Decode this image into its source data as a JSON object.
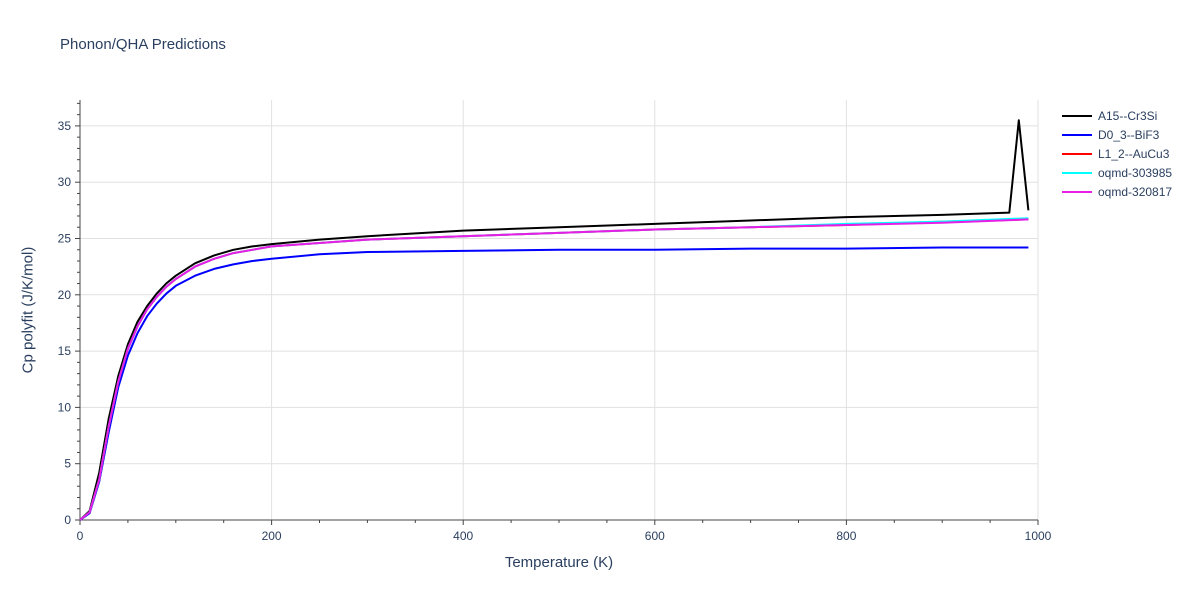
{
  "title": "Phonon/QHA Predictions",
  "chart_data": {
    "type": "line",
    "title": "Phonon/QHA Predictions",
    "xlabel": "Temperature (K)",
    "ylabel": "Cp polyfit (J/K/mol)",
    "xlim": [
      0,
      1000
    ],
    "ylim": [
      0,
      37.3
    ],
    "xticks": [
      0,
      200,
      400,
      600,
      800,
      1000
    ],
    "yticks": [
      0,
      5,
      10,
      15,
      20,
      25,
      30,
      35
    ],
    "grid": true,
    "legend_position": "top-right",
    "series": [
      {
        "name": "A15--Cr3Si",
        "color": "#000000",
        "x": [
          0,
          10,
          20,
          30,
          40,
          50,
          60,
          70,
          80,
          90,
          100,
          120,
          140,
          160,
          180,
          200,
          250,
          300,
          400,
          500,
          600,
          700,
          800,
          900,
          970,
          980,
          990
        ],
        "y": [
          0,
          0.8,
          4.2,
          9.0,
          12.8,
          15.6,
          17.6,
          19.0,
          20.1,
          21.0,
          21.7,
          22.8,
          23.5,
          24.0,
          24.3,
          24.5,
          24.9,
          25.2,
          25.7,
          26.0,
          26.3,
          26.6,
          26.9,
          27.1,
          27.3,
          35.5,
          27.5
        ]
      },
      {
        "name": "D0_3--BiF3",
        "color": "#0000ff",
        "x": [
          0,
          10,
          20,
          30,
          40,
          50,
          60,
          70,
          80,
          90,
          100,
          120,
          140,
          160,
          180,
          200,
          250,
          300,
          400,
          500,
          600,
          700,
          800,
          900,
          990
        ],
        "y": [
          0,
          0.6,
          3.4,
          7.8,
          11.8,
          14.6,
          16.6,
          18.1,
          19.2,
          20.1,
          20.8,
          21.7,
          22.3,
          22.7,
          23.0,
          23.2,
          23.6,
          23.8,
          23.9,
          24.0,
          24.0,
          24.1,
          24.1,
          24.2,
          24.2
        ]
      },
      {
        "name": "L1_2--AuCu3",
        "color": "#ff0000",
        "x": [
          0,
          10,
          20,
          30,
          40,
          50,
          60,
          70,
          80,
          90,
          100,
          120,
          140,
          160,
          180,
          200,
          250,
          300,
          400,
          500,
          600,
          700,
          800,
          900,
          990
        ],
        "y": [
          0,
          0.7,
          3.6,
          8.3,
          12.3,
          15.2,
          17.2,
          18.7,
          19.8,
          20.7,
          21.4,
          22.5,
          23.2,
          23.7,
          24.0,
          24.3,
          24.6,
          24.9,
          25.2,
          25.5,
          25.8,
          26.0,
          26.2,
          26.5,
          26.7
        ]
      },
      {
        "name": "oqmd-303985",
        "color": "#00ffff",
        "x": [
          0,
          10,
          20,
          30,
          40,
          50,
          60,
          70,
          80,
          90,
          100,
          120,
          140,
          160,
          180,
          200,
          250,
          300,
          400,
          500,
          600,
          700,
          800,
          900,
          990
        ],
        "y": [
          0,
          0.7,
          3.6,
          8.3,
          12.3,
          15.2,
          17.2,
          18.7,
          19.8,
          20.7,
          21.4,
          22.5,
          23.2,
          23.7,
          24.0,
          24.3,
          24.6,
          24.9,
          25.2,
          25.5,
          25.8,
          26.0,
          26.3,
          26.5,
          26.8
        ]
      },
      {
        "name": "oqmd-320817",
        "color": "#e61ee6",
        "x": [
          0,
          10,
          20,
          30,
          40,
          50,
          60,
          70,
          80,
          90,
          100,
          120,
          140,
          160,
          180,
          200,
          250,
          300,
          400,
          500,
          600,
          700,
          800,
          900,
          990
        ],
        "y": [
          0,
          0.7,
          3.6,
          8.3,
          12.3,
          15.2,
          17.2,
          18.7,
          19.8,
          20.7,
          21.4,
          22.5,
          23.2,
          23.7,
          24.0,
          24.3,
          24.6,
          24.9,
          25.2,
          25.5,
          25.8,
          26.0,
          26.2,
          26.4,
          26.7
        ]
      }
    ]
  }
}
